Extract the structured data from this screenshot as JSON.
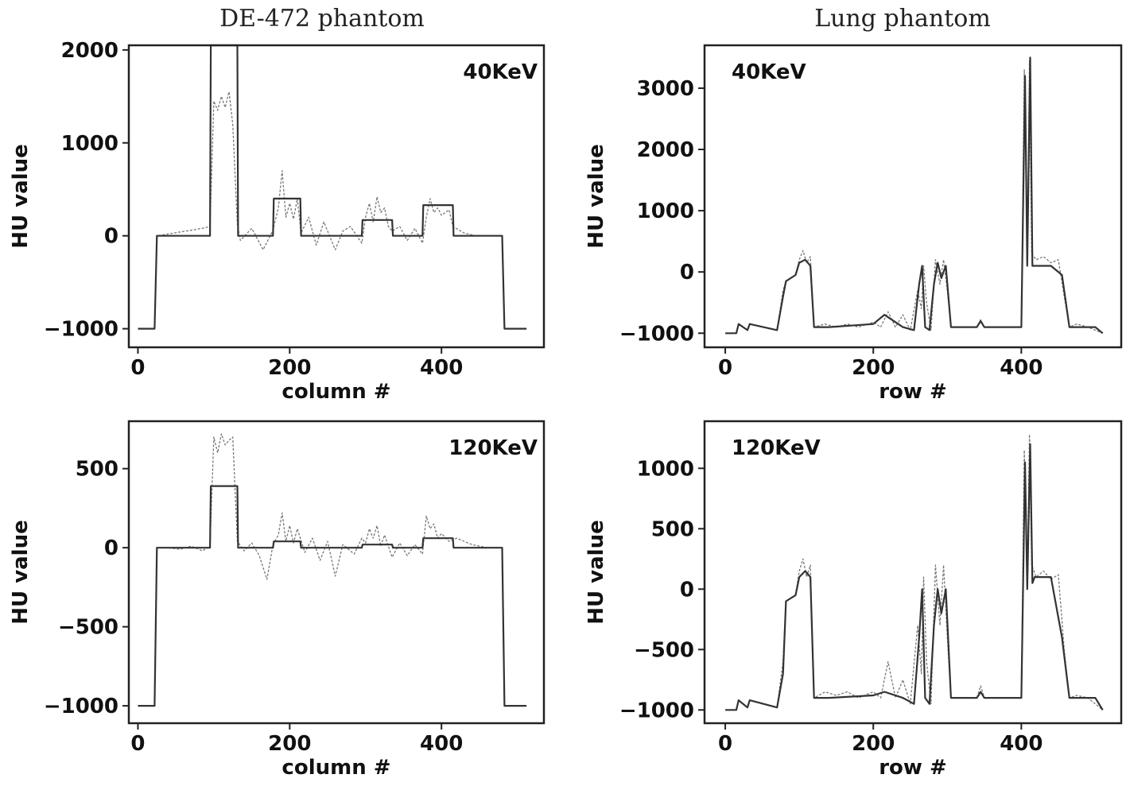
{
  "column_titles": [
    "DE-472 phantom",
    "Lung phantom"
  ],
  "chart_data": [
    {
      "type": "line",
      "column_title": "DE-472 phantom",
      "annotation": "40KeV",
      "annotation_position": "top-right",
      "xlabel": "column #",
      "ylabel": "HU value",
      "xlim": [
        -12,
        535
      ],
      "ylim": [
        -1200,
        2050
      ],
      "xticks": [
        0,
        200,
        400
      ],
      "yticks": [
        -1000,
        0,
        1000,
        2000
      ],
      "ytick_labels": [
        "−1000",
        "0",
        "1000",
        "2000"
      ],
      "series": [
        {
          "style": "solid",
          "x": [
            0,
            22,
            25,
            95,
            96,
            131,
            132,
            178,
            179,
            214,
            215,
            295,
            296,
            335,
            336,
            375,
            376,
            415,
            416,
            480,
            483,
            512
          ],
          "values": [
            -1000,
            -1000,
            0,
            0,
            2050,
            2050,
            0,
            0,
            400,
            400,
            0,
            0,
            170,
            170,
            0,
            0,
            330,
            330,
            0,
            0,
            -1000,
            -1000
          ]
        },
        {
          "style": "noisy",
          "x": [
            0,
            22,
            25,
            40,
            55,
            70,
            85,
            95,
            100,
            105,
            110,
            115,
            120,
            125,
            131,
            135,
            150,
            165,
            178,
            185,
            190,
            195,
            200,
            205,
            210,
            215,
            225,
            235,
            245,
            260,
            270,
            280,
            295,
            300,
            305,
            310,
            315,
            320,
            325,
            330,
            335,
            345,
            355,
            365,
            375,
            380,
            385,
            390,
            395,
            400,
            410,
            415,
            430,
            445,
            460,
            480,
            483,
            512
          ],
          "values": [
            -1000,
            -1000,
            0,
            20,
            40,
            60,
            80,
            100,
            1450,
            1350,
            1500,
            1380,
            1550,
            1200,
            120,
            -50,
            80,
            -150,
            60,
            300,
            700,
            200,
            350,
            180,
            400,
            30,
            200,
            -100,
            150,
            -150,
            50,
            100,
            -80,
            200,
            350,
            150,
            420,
            250,
            300,
            100,
            50,
            100,
            -50,
            80,
            -80,
            200,
            400,
            250,
            300,
            220,
            280,
            100,
            30,
            0,
            0,
            0,
            -1000,
            -1000
          ]
        }
      ]
    },
    {
      "type": "line",
      "column_title": "Lung phantom",
      "annotation": "40KeV",
      "annotation_position": "top-left",
      "xlabel": "row #",
      "ylabel": "HU value",
      "xlim": [
        -28,
        535
      ],
      "ylim": [
        -1230,
        3700
      ],
      "xticks": [
        0,
        200,
        400
      ],
      "yticks": [
        -1000,
        0,
        1000,
        2000,
        3000
      ],
      "ytick_labels": [
        "−1000",
        "0",
        "1000",
        "2000",
        "3000"
      ],
      "series": [
        {
          "style": "solid",
          "x": [
            0,
            15,
            18,
            30,
            33,
            70,
            78,
            82,
            95,
            100,
            108,
            115,
            120,
            140,
            200,
            215,
            240,
            255,
            262,
            266,
            270,
            276,
            282,
            287,
            292,
            298,
            305,
            340,
            345,
            350,
            400,
            405,
            408,
            412,
            415,
            418,
            440,
            455,
            465,
            470,
            500,
            510
          ],
          "values": [
            -1000,
            -1000,
            -850,
            -950,
            -850,
            -950,
            -400,
            -150,
            -50,
            150,
            200,
            100,
            -900,
            -900,
            -850,
            -700,
            -900,
            -950,
            -200,
            100,
            -900,
            -950,
            -200,
            150,
            -100,
            100,
            -900,
            -900,
            -800,
            -900,
            -900,
            3200,
            100,
            3500,
            100,
            100,
            100,
            -50,
            -900,
            -900,
            -900,
            -1000
          ]
        },
        {
          "style": "noisy",
          "x": [
            0,
            15,
            18,
            30,
            33,
            70,
            78,
            82,
            95,
            100,
            105,
            110,
            115,
            120,
            135,
            150,
            165,
            180,
            200,
            210,
            220,
            230,
            240,
            250,
            260,
            265,
            268,
            272,
            278,
            284,
            290,
            295,
            300,
            305,
            340,
            345,
            350,
            400,
            404,
            408,
            411,
            414,
            417,
            420,
            430,
            440,
            450,
            458,
            465,
            475,
            490,
            510
          ],
          "values": [
            -1000,
            -1000,
            -850,
            -950,
            -850,
            -950,
            -300,
            -150,
            -50,
            200,
            350,
            150,
            250,
            -900,
            -850,
            -900,
            -850,
            -900,
            -820,
            -900,
            -650,
            -900,
            -700,
            -950,
            -300,
            -600,
            100,
            -500,
            -950,
            200,
            -200,
            200,
            -300,
            -900,
            -900,
            -780,
            -900,
            -900,
            3300,
            200,
            3450,
            300,
            250,
            200,
            250,
            150,
            200,
            -400,
            -900,
            -850,
            -900,
            -1000
          ]
        }
      ]
    },
    {
      "type": "line",
      "column_title": "DE-472 phantom",
      "annotation": "120KeV",
      "annotation_position": "top-right",
      "xlabel": "column #",
      "ylabel": "HU value",
      "xlim": [
        -12,
        535
      ],
      "ylim": [
        -1110,
        800
      ],
      "xticks": [
        0,
        200,
        400
      ],
      "yticks": [
        -1000,
        -500,
        0,
        500
      ],
      "ytick_labels": [
        "−1000",
        "−500",
        "0",
        "500"
      ],
      "series": [
        {
          "style": "solid",
          "x": [
            0,
            22,
            25,
            95,
            96,
            131,
            132,
            178,
            179,
            214,
            215,
            295,
            296,
            335,
            336,
            375,
            376,
            415,
            416,
            480,
            483,
            512
          ],
          "values": [
            -1000,
            -1000,
            0,
            0,
            390,
            390,
            0,
            0,
            40,
            40,
            0,
            0,
            20,
            20,
            0,
            0,
            60,
            60,
            0,
            0,
            -1000,
            -1000
          ]
        },
        {
          "style": "noisy",
          "x": [
            0,
            22,
            25,
            40,
            55,
            70,
            85,
            95,
            100,
            105,
            110,
            115,
            120,
            125,
            131,
            140,
            150,
            160,
            170,
            178,
            185,
            190,
            195,
            200,
            205,
            210,
            220,
            230,
            240,
            250,
            260,
            270,
            285,
            295,
            300,
            305,
            310,
            315,
            320,
            325,
            335,
            345,
            355,
            365,
            375,
            380,
            385,
            390,
            395,
            400,
            410,
            420,
            440,
            460,
            480,
            483,
            512
          ],
          "values": [
            -1000,
            -1000,
            0,
            0,
            -10,
            10,
            -20,
            10,
            700,
            600,
            720,
            650,
            680,
            700,
            40,
            -20,
            30,
            -50,
            -200,
            20,
            80,
            220,
            40,
            140,
            30,
            120,
            -30,
            60,
            -80,
            40,
            -180,
            20,
            -40,
            60,
            30,
            120,
            60,
            140,
            10,
            80,
            -60,
            30,
            -50,
            20,
            -40,
            200,
            120,
            150,
            60,
            90,
            40,
            60,
            20,
            0,
            0,
            -1000,
            -1000
          ]
        }
      ]
    },
    {
      "type": "line",
      "column_title": "Lung phantom",
      "annotation": "120KeV",
      "annotation_position": "top-left",
      "xlabel": "row #",
      "ylabel": "HU value",
      "xlim": [
        -28,
        535
      ],
      "ylim": [
        -1110,
        1390
      ],
      "xticks": [
        0,
        200,
        400
      ],
      "yticks": [
        -1000,
        -500,
        0,
        500,
        1000
      ],
      "ytick_labels": [
        "−1000",
        "−500",
        "0",
        "500",
        "1000"
      ],
      "series": [
        {
          "style": "solid",
          "x": [
            0,
            15,
            18,
            30,
            33,
            70,
            78,
            82,
            95,
            100,
            108,
            115,
            120,
            140,
            200,
            215,
            240,
            255,
            262,
            266,
            270,
            276,
            282,
            287,
            292,
            298,
            305,
            340,
            345,
            350,
            400,
            405,
            408,
            412,
            415,
            418,
            440,
            455,
            465,
            470,
            500,
            510
          ],
          "values": [
            -1000,
            -1000,
            -920,
            -980,
            -920,
            -980,
            -700,
            -100,
            -50,
            100,
            150,
            100,
            -900,
            -900,
            -880,
            -850,
            -900,
            -950,
            -400,
            0,
            -900,
            -950,
            -300,
            0,
            -200,
            0,
            -900,
            -900,
            -850,
            -900,
            -900,
            1050,
            0,
            1200,
            50,
            100,
            100,
            -400,
            -900,
            -900,
            -900,
            -1000
          ]
        },
        {
          "style": "noisy",
          "x": [
            0,
            15,
            18,
            30,
            33,
            70,
            78,
            82,
            95,
            100,
            105,
            110,
            115,
            120,
            135,
            150,
            165,
            180,
            200,
            210,
            220,
            230,
            240,
            250,
            260,
            265,
            268,
            272,
            278,
            284,
            290,
            295,
            300,
            305,
            340,
            345,
            350,
            400,
            404,
            408,
            411,
            414,
            417,
            420,
            430,
            440,
            450,
            458,
            465,
            475,
            490,
            510
          ],
          "values": [
            -1000,
            -1000,
            -920,
            -980,
            -920,
            -980,
            -600,
            -100,
            -50,
            150,
            250,
            100,
            200,
            -900,
            -850,
            -880,
            -850,
            -900,
            -850,
            -900,
            -600,
            -900,
            -750,
            -950,
            -300,
            -700,
            100,
            -600,
            -950,
            200,
            -300,
            200,
            -400,
            -900,
            -900,
            -800,
            -900,
            -900,
            1150,
            100,
            1280,
            200,
            150,
            100,
            150,
            80,
            120,
            -500,
            -900,
            -880,
            -900,
            -1000
          ]
        }
      ]
    }
  ]
}
